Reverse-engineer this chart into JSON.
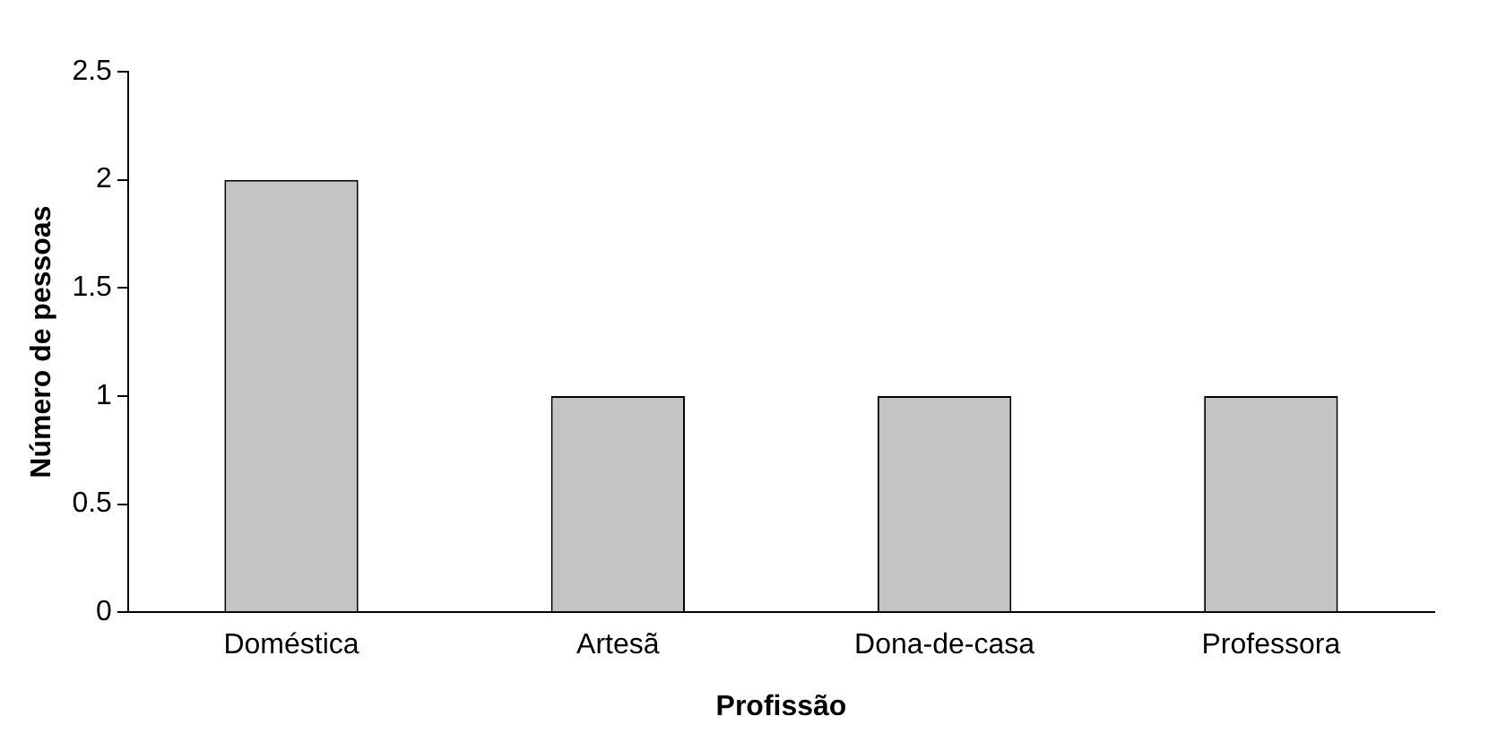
{
  "chart_data": {
    "type": "bar",
    "xlabel": "Profissão",
    "ylabel": "Número de pessoas",
    "categories": [
      "Doméstica",
      "Artesã",
      "Dona-de-casa",
      "Professora"
    ],
    "values": [
      2,
      1,
      1,
      1
    ],
    "color": "#c4c4c4",
    "ylim": [
      0,
      2.5
    ],
    "yticks": [
      0,
      0.5,
      1,
      1.5,
      2,
      2.5
    ],
    "grid": false,
    "legend": false
  }
}
